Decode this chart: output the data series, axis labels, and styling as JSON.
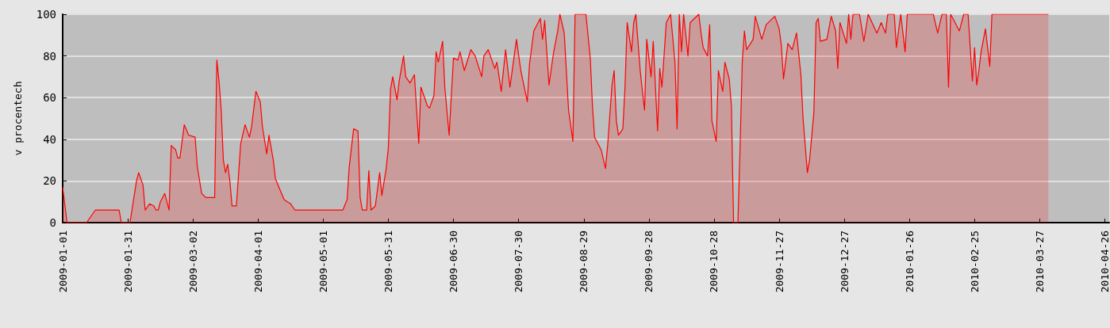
{
  "chart_data": {
    "type": "area",
    "ylabel": "v procentech",
    "x": [
      "2009-01-01",
      "2009-01-03",
      "2009-01-12",
      "2009-01-16",
      "2009-01-27",
      "2009-01-28",
      "2009-02-01",
      "2009-02-04",
      "2009-02-05",
      "2009-02-07",
      "2009-02-08",
      "2009-02-10",
      "2009-02-12",
      "2009-02-13",
      "2009-02-14",
      "2009-02-15",
      "2009-02-17",
      "2009-02-18",
      "2009-02-19",
      "2009-02-20",
      "2009-02-22",
      "2009-02-23",
      "2009-02-24",
      "2009-02-26",
      "2009-02-28",
      "2009-03-03",
      "2009-03-04",
      "2009-03-06",
      "2009-03-08",
      "2009-03-12",
      "2009-03-13",
      "2009-03-14",
      "2009-03-15",
      "2009-03-16",
      "2009-03-17",
      "2009-03-18",
      "2009-03-19",
      "2009-03-20",
      "2009-03-22",
      "2009-03-23",
      "2009-03-24",
      "2009-03-26",
      "2009-03-28",
      "2009-03-29",
      "2009-03-31",
      "2009-04-02",
      "2009-04-03",
      "2009-04-05",
      "2009-04-06",
      "2009-04-07",
      "2009-04-08",
      "2009-04-09",
      "2009-04-11",
      "2009-04-13",
      "2009-04-16",
      "2009-04-18",
      "2009-05-10",
      "2009-05-12",
      "2009-05-13",
      "2009-05-15",
      "2009-05-17",
      "2009-05-18",
      "2009-05-19",
      "2009-05-21",
      "2009-05-22",
      "2009-05-23",
      "2009-05-25",
      "2009-05-27",
      "2009-05-28",
      "2009-05-30",
      "2009-05-31",
      "2009-06-01",
      "2009-06-02",
      "2009-06-04",
      "2009-06-05",
      "2009-06-07",
      "2009-06-08",
      "2009-06-10",
      "2009-06-12",
      "2009-06-14",
      "2009-06-15",
      "2009-06-18",
      "2009-06-19",
      "2009-06-21",
      "2009-06-22",
      "2009-06-23",
      "2009-06-25",
      "2009-06-26",
      "2009-06-28",
      "2009-06-29",
      "2009-06-30",
      "2009-07-02",
      "2009-07-03",
      "2009-07-05",
      "2009-07-08",
      "2009-07-10",
      "2009-07-13",
      "2009-07-14",
      "2009-07-16",
      "2009-07-19",
      "2009-07-20",
      "2009-07-22",
      "2009-07-24",
      "2009-07-26",
      "2009-07-29",
      "2009-07-31",
      "2009-08-03",
      "2009-08-04",
      "2009-08-06",
      "2009-08-09",
      "2009-08-10",
      "2009-08-11",
      "2009-08-13",
      "2009-08-15",
      "2009-08-17",
      "2009-08-18",
      "2009-08-20",
      "2009-08-22",
      "2009-08-24",
      "2009-08-25",
      "2009-08-30",
      "2009-09-01",
      "2009-09-02",
      "2009-09-03",
      "2009-09-06",
      "2009-09-08",
      "2009-09-09",
      "2009-09-11",
      "2009-09-12",
      "2009-09-13",
      "2009-09-14",
      "2009-09-16",
      "2009-09-17",
      "2009-09-18",
      "2009-09-20",
      "2009-09-21",
      "2009-09-22",
      "2009-09-24",
      "2009-09-25",
      "2009-09-26",
      "2009-09-27",
      "2009-09-29",
      "2009-09-30",
      "2009-10-02",
      "2009-10-03",
      "2009-10-04",
      "2009-10-06",
      "2009-10-08",
      "2009-10-10",
      "2009-10-11",
      "2009-10-12",
      "2009-10-13",
      "2009-10-14",
      "2009-10-16",
      "2009-10-17",
      "2009-10-21",
      "2009-10-22",
      "2009-10-23",
      "2009-10-25",
      "2009-10-26",
      "2009-10-27",
      "2009-10-29",
      "2009-10-30",
      "2009-11-01",
      "2009-11-02",
      "2009-11-04",
      "2009-11-05",
      "2009-11-06",
      "2009-11-08",
      "2009-11-09",
      "2009-11-10",
      "2009-11-11",
      "2009-11-12",
      "2009-11-15",
      "2009-11-16",
      "2009-11-19",
      "2009-11-21",
      "2009-11-25",
      "2009-11-27",
      "2009-11-28",
      "2009-11-29",
      "2009-12-01",
      "2009-12-03",
      "2009-12-05",
      "2009-12-07",
      "2009-12-08",
      "2009-12-10",
      "2009-12-11",
      "2009-12-13",
      "2009-12-14",
      "2009-12-15",
      "2009-12-16",
      "2009-12-19",
      "2009-12-21",
      "2009-12-23",
      "2009-12-24",
      "2009-12-25",
      "2009-12-28",
      "2009-12-29",
      "2009-12-30",
      "2009-12-31",
      "2010-01-03",
      "2010-01-05",
      "2010-01-07",
      "2010-01-11",
      "2010-01-13",
      "2010-01-15",
      "2010-01-16",
      "2010-01-19",
      "2010-01-20",
      "2010-01-22",
      "2010-01-23",
      "2010-01-24",
      "2010-01-25",
      "2010-02-06",
      "2010-02-08",
      "2010-02-10",
      "2010-02-12",
      "2010-02-13",
      "2010-02-14",
      "2010-02-18",
      "2010-02-20",
      "2010-02-22",
      "2010-02-24",
      "2010-02-25",
      "2010-02-26",
      "2010-02-27",
      "2010-02-28",
      "2010-03-02",
      "2010-03-04",
      "2010-03-05",
      "2010-03-31"
    ],
    "series": [
      {
        "color": "#ff0000",
        "values": [
          17,
          0,
          0,
          6,
          6,
          0,
          0,
          20,
          24,
          18,
          6,
          9,
          8,
          6,
          6,
          10,
          14,
          10,
          6,
          37,
          35,
          31,
          31,
          47,
          42,
          41,
          27,
          14,
          12,
          12,
          78,
          68,
          54,
          30,
          24,
          28,
          20,
          8,
          8,
          23,
          38,
          47,
          41,
          46,
          63,
          58,
          46,
          33,
          42,
          36,
          30,
          21,
          16,
          11,
          9,
          6,
          6,
          11,
          27,
          45,
          44,
          12,
          6,
          6,
          25,
          6,
          8,
          24,
          13,
          26,
          36,
          64,
          70,
          59,
          68,
          80,
          70,
          67,
          71,
          38,
          65,
          56,
          55,
          61,
          82,
          77,
          87,
          65,
          42,
          61,
          79,
          78,
          82,
          73,
          83,
          80,
          70,
          80,
          83,
          74,
          77,
          63,
          83,
          65,
          88,
          73,
          58,
          76,
          92,
          98,
          88,
          97,
          66,
          81,
          92,
          100,
          91,
          54,
          39,
          100,
          100,
          79,
          56,
          41,
          35,
          26,
          37,
          66,
          73,
          49,
          42,
          45,
          65,
          96,
          82,
          96,
          100,
          73,
          63,
          54,
          88,
          70,
          87,
          44,
          74,
          65,
          96,
          100,
          77,
          45,
          100,
          82,
          100,
          80,
          96,
          100,
          91,
          84,
          80,
          95,
          49,
          39,
          73,
          63,
          77,
          69,
          56,
          0,
          0,
          36,
          77,
          92,
          83,
          88,
          99,
          88,
          95,
          99,
          93,
          85,
          69,
          86,
          83,
          91,
          71,
          50,
          24,
          30,
          53,
          96,
          98,
          87,
          88,
          99,
          92,
          74,
          96,
          86,
          100,
          88,
          100,
          100,
          87,
          100,
          91,
          96,
          91,
          100,
          100,
          84,
          100,
          91,
          82,
          100,
          100,
          91,
          100,
          100,
          65,
          100,
          92,
          100,
          100,
          68,
          84,
          66,
          73,
          82,
          93,
          75,
          100,
          100
        ]
      }
    ],
    "xlim": [
      "2009-01-01",
      "2010-04-28"
    ],
    "xticks": [
      "2009-01-01",
      "2009-01-31",
      "2009-03-02",
      "2009-04-01",
      "2009-05-01",
      "2009-05-31",
      "2009-06-30",
      "2009-07-30",
      "2009-08-29",
      "2009-09-28",
      "2009-10-28",
      "2009-11-27",
      "2009-12-27",
      "2010-01-26",
      "2010-02-25",
      "2010-03-27",
      "2010-04-26"
    ],
    "ylim": [
      0,
      100
    ],
    "yticks": [
      0,
      20,
      40,
      60,
      80,
      100
    ],
    "grid": "y",
    "marker": "none",
    "line_style": "solid"
  }
}
